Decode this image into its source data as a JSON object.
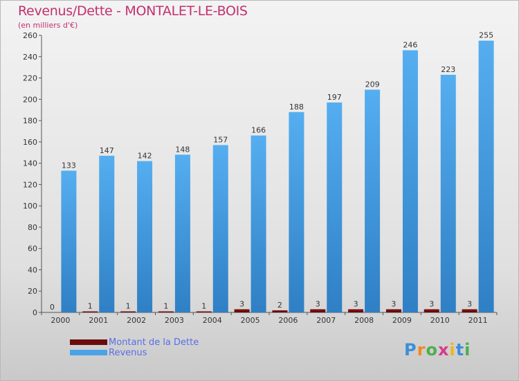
{
  "header": {
    "title": "Revenus/Dette - MONTALET-LE-BOIS",
    "subtitle": "(en milliers d'€)"
  },
  "colors": {
    "title": "#c2306e",
    "revenus": "#4aa3e6",
    "dette": "#6b0c0c",
    "legend_text": "#5a6ee6"
  },
  "chart_data": {
    "type": "bar",
    "title": "Revenus/Dette - MONTALET-LE-BOIS",
    "subtitle": "(en milliers d'€)",
    "categories": [
      "2000",
      "2001",
      "2002",
      "2003",
      "2004",
      "2005",
      "2006",
      "2007",
      "2008",
      "2009",
      "2010",
      "2011"
    ],
    "series": [
      {
        "name": "Montant de la Dette",
        "values": [
          0,
          1,
          1,
          1,
          1,
          3,
          2,
          3,
          3,
          3,
          3,
          3
        ]
      },
      {
        "name": "Revenus",
        "values": [
          133,
          147,
          142,
          148,
          157,
          166,
          188,
          197,
          209,
          246,
          223,
          255
        ]
      }
    ],
    "ylim": [
      0,
      260
    ],
    "yticks": [
      0,
      20,
      40,
      60,
      80,
      100,
      120,
      140,
      160,
      180,
      200,
      220,
      240,
      260
    ],
    "grid": false,
    "legend": "bottom-left"
  },
  "legend": {
    "items": [
      {
        "label": "Montant de la Dette",
        "color": "#6b0c0c"
      },
      {
        "label": "Revenus",
        "color": "#4aa3e6"
      }
    ]
  },
  "logo": {
    "text": "Proxiti"
  }
}
